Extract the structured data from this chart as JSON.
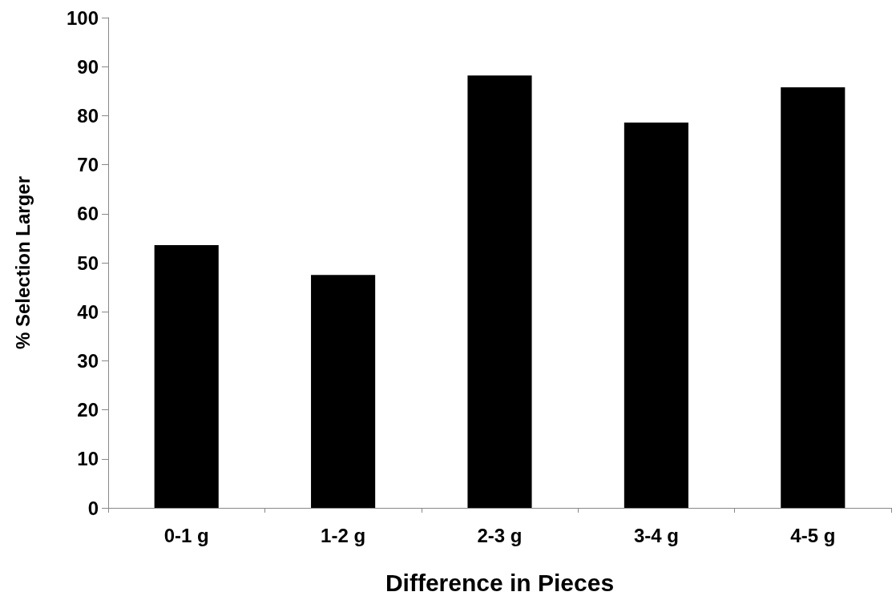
{
  "chart_data": {
    "type": "bar",
    "xlabel": "Difference in Pieces",
    "ylabel": "% Selection Larger",
    "categories": [
      "0-1 g",
      "1-2 g",
      "2-3 g",
      "3-4 g",
      "4-5 g"
    ],
    "values": [
      53.6,
      47.5,
      88.2,
      78.6,
      85.8
    ],
    "color": "#000000",
    "ylim": [
      0,
      100
    ],
    "yticks": [
      0,
      10,
      20,
      30,
      40,
      50,
      60,
      70,
      80,
      90,
      100
    ],
    "grid": false
  }
}
